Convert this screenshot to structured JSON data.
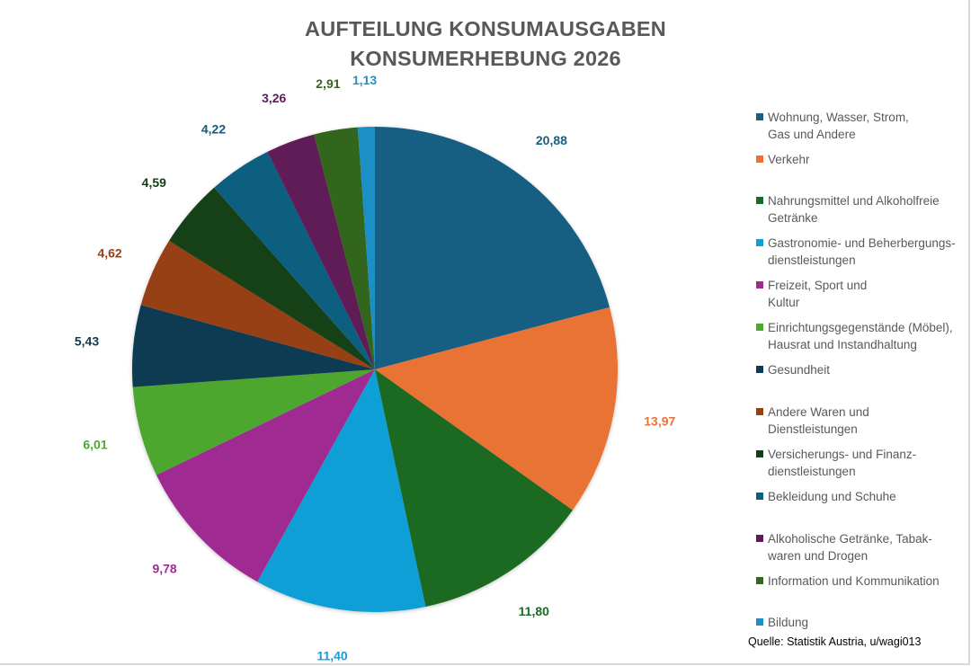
{
  "chart_data": {
    "type": "pie",
    "title": "AUFTEILUNG KONSUMAUSGABEN",
    "subtitle": "KONSUMERHEBUNG 2026",
    "start_angle": "12 o'clock, clockwise",
    "legend_position": "right",
    "slices": [
      {
        "label": "Wohnung, Wasser, Strom,\nGas und Andere",
        "value": 20.88,
        "display": "20,88",
        "color": "#185f82"
      },
      {
        "label": "Verkehr",
        "value": 13.97,
        "display": "13,97",
        "color": "#e97234"
      },
      {
        "label": "Nahrungsmittel und Alkoholfreie\nGetränke",
        "value": 11.8,
        "display": "11,80",
        "color": "#1c6b24"
      },
      {
        "label": "Gastronomie- und Beherbergungs-\ndienstleistungen",
        "value": 11.4,
        "display": "11,40",
        "color": "#119fd6"
      },
      {
        "label": "Freizeit, Sport und\nKultur",
        "value": 9.78,
        "display": "9,78",
        "color": "#9f2b91"
      },
      {
        "label": "Einrichtungsgegenstände (Möbel),\nHausrat und Instandhaltung",
        "value": 6.01,
        "display": "6,01",
        "color": "#4ea72e"
      },
      {
        "label": "Gesundheit",
        "value": 5.43,
        "display": "5,43",
        "color": "#0e3a51"
      },
      {
        "label": "Andere Waren und\nDienstleistungen",
        "value": 4.62,
        "display": "4,62",
        "color": "#974113"
      },
      {
        "label": "Versicherungs- und Finanz-\ndienstleistungen",
        "value": 4.59,
        "display": "4,59",
        "color": "#124117"
      },
      {
        "label": "Bekleidung und Schuhe",
        "value": 4.22,
        "display": "4,22",
        "color": "#0b5e80"
      },
      {
        "label": "Alkoholische Getränke, Tabak-\nwaren und Drogen",
        "value": 3.26,
        "display": "3,26",
        "color": "#611a57"
      },
      {
        "label": "Information und Kommunikation",
        "value": 2.91,
        "display": "2,91",
        "color": "#33661f"
      },
      {
        "label": "Bildung",
        "value": 1.13,
        "display": "1,13",
        "color": "#1f8fc6"
      }
    ]
  },
  "source": "Quelle: Statistik Austria, u/wagi013"
}
